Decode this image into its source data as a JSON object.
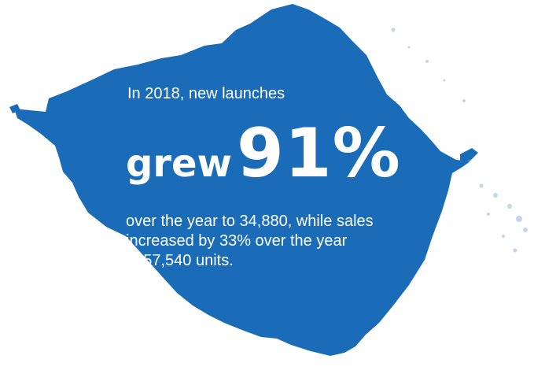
{
  "colors": {
    "splash_blue": "#1a6bb8",
    "speckle_blue": "#c6d4e8",
    "text": "#ffffff"
  },
  "intro": "In 2018, new launches",
  "headline": {
    "word": "grew",
    "percentage": "91%"
  },
  "body_lines": [
    "over the year to 34,880, while sales",
    "increased by 33% over the year",
    "to 57,540 units."
  ]
}
